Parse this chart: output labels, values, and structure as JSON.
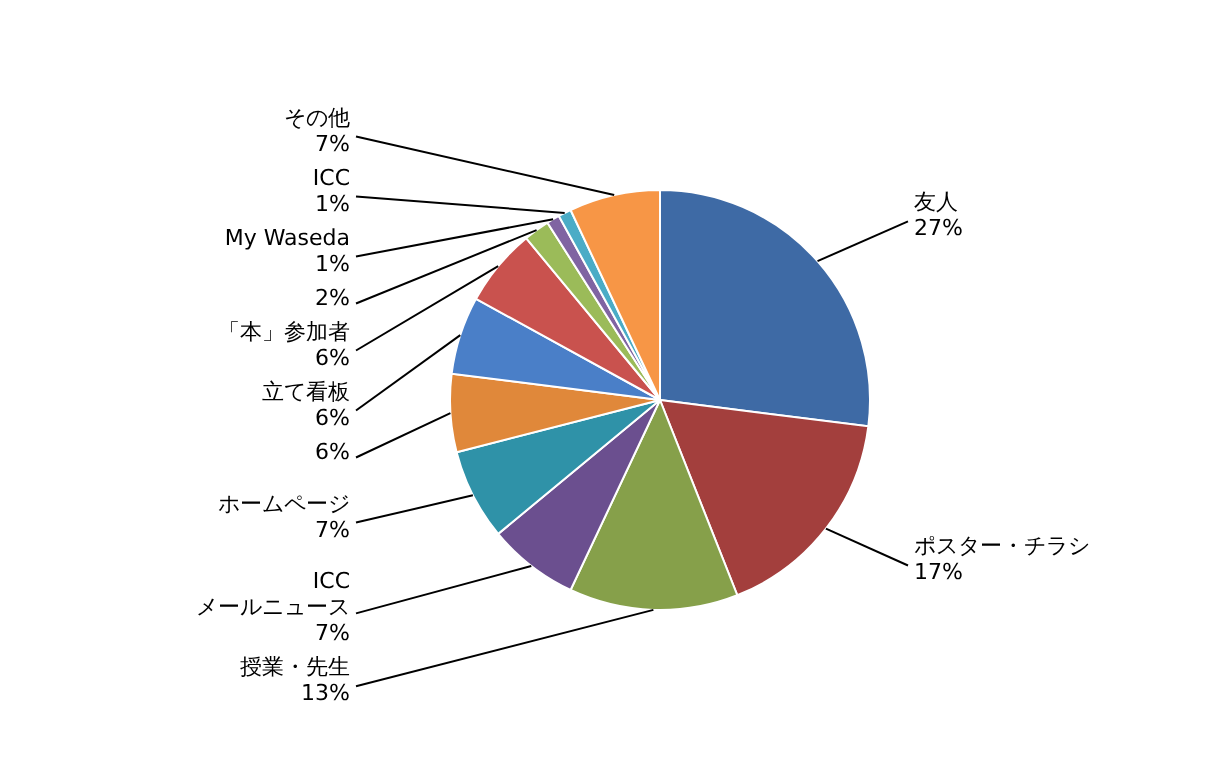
{
  "chart_data": {
    "type": "pie",
    "categories": [
      "友人",
      "ポスター・チラシ",
      "授業・先生",
      "ICC\nメールニュース",
      "ホームページ",
      null,
      "立て看板",
      "「本」参加者",
      null,
      "My Waseda",
      "ICC",
      "その他"
    ],
    "values": [
      27,
      17,
      13,
      7,
      7,
      6,
      6,
      6,
      2,
      1,
      1,
      7
    ],
    "value_labels": [
      "27%",
      "17%",
      "13%",
      "7%",
      "7%",
      "6%",
      "6%",
      "6%",
      "2%",
      "1%",
      "1%",
      "7%"
    ],
    "colors": [
      "#3e6aa5",
      "#a33f3d",
      "#86a04a",
      "#6b4f8f",
      "#2f92a8",
      "#e0883a",
      "#4a7fc8",
      "#c9524e",
      "#9bbb59",
      "#8064a2",
      "#4bacc6",
      "#f79646"
    ]
  }
}
